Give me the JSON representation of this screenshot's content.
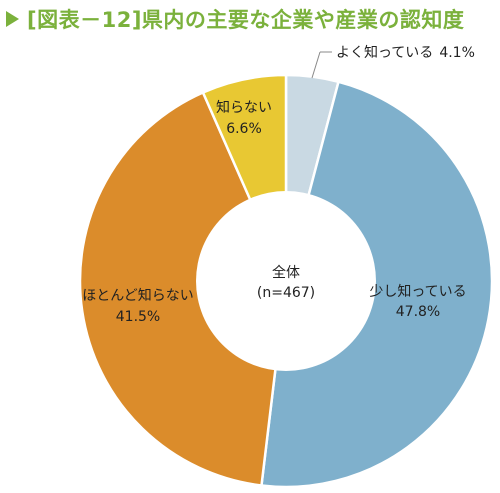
{
  "title": "[図表－12]県内の主要な企業や産業の認知度",
  "chart_data": {
    "type": "pie",
    "title": "[図表－12]県内の主要な企業や産業の認知度",
    "center_label": "全体",
    "center_sublabel": "(n=467)",
    "slices": [
      {
        "label": "よく知っている",
        "value": 4.1,
        "value_label": "4.1%",
        "color": "#c9d9e3"
      },
      {
        "label": "少し知っている",
        "value": 47.8,
        "value_label": "47.8%",
        "color": "#7fb0cc"
      },
      {
        "label": "ほとんど知らない",
        "value": 41.5,
        "value_label": "41.5%",
        "color": "#db8c2b"
      },
      {
        "label": "知らない",
        "value": 6.6,
        "value_label": "6.6%",
        "color": "#e8c833"
      }
    ]
  }
}
